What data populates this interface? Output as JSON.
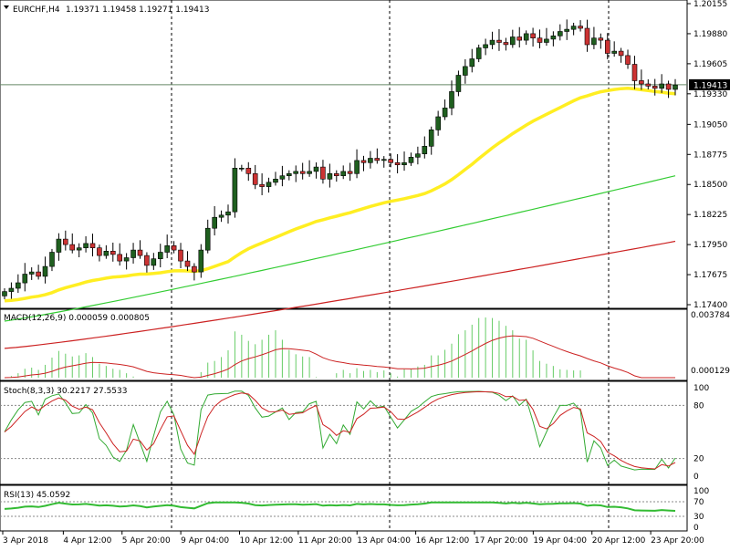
{
  "chart_data": {
    "type": "candlestick",
    "symbol_label": "EURCHF,H4",
    "ohlc_label": "1.19371 1.19458 1.19271 1.19413",
    "current_price_label": "1.19413",
    "price_ticks": [
      "1.20155",
      "1.19880",
      "1.19605",
      "1.19330",
      "1.19050",
      "1.18775",
      "1.18500",
      "1.18225",
      "1.17950",
      "1.17675",
      "1.17400"
    ],
    "price_range": [
      1.174,
      1.20155
    ],
    "current_price": 1.19413,
    "time_ticks": [
      "3 Apr 2018",
      "4 Apr 12:00",
      "5 Apr 20:00",
      "9 Apr 04:00",
      "10 Apr 12:00",
      "11 Apr 20:00",
      "13 Apr 04:00",
      "16 Apr 12:00",
      "17 Apr 20:00",
      "19 Apr 04:00",
      "20 Apr 12:00",
      "23 Apr 20:00"
    ],
    "closes": [
      1.1752,
      1.1755,
      1.176,
      1.1768,
      1.177,
      1.1766,
      1.1775,
      1.1788,
      1.18,
      1.1795,
      1.179,
      1.1792,
      1.1796,
      1.1792,
      1.1785,
      1.1789,
      1.1786,
      1.178,
      1.1783,
      1.179,
      1.1785,
      1.1776,
      1.1782,
      1.1788,
      1.1794,
      1.179,
      1.178,
      1.1775,
      1.177,
      1.179,
      1.181,
      1.182,
      1.1822,
      1.1825,
      1.1865,
      1.1865,
      1.186,
      1.185,
      1.1848,
      1.1852,
      1.1855,
      1.1858,
      1.186,
      1.1862,
      1.186,
      1.1862,
      1.1866,
      1.1855,
      1.186,
      1.1858,
      1.1862,
      1.186,
      1.1872,
      1.187,
      1.1874,
      1.1872,
      1.1873,
      1.187,
      1.1868,
      1.187,
      1.1875,
      1.1878,
      1.1885,
      1.19,
      1.1912,
      1.192,
      1.1935,
      1.195,
      1.1958,
      1.1965,
      1.1975,
      1.1978,
      1.1982,
      1.198,
      1.1978,
      1.1985,
      1.1982,
      1.1988,
      1.1984,
      1.198,
      1.1983,
      1.1986,
      1.199,
      1.1992,
      1.1995,
      1.1993,
      1.1978,
      1.1984,
      1.1982,
      1.197,
      1.1972,
      1.1968,
      1.196,
      1.1945,
      1.1942,
      1.194,
      1.1938,
      1.1942,
      1.1937,
      1.1941
    ],
    "ma_yellow": {
      "start": 1.1743,
      "end": 1.1933
    },
    "ma_green": {
      "start": 1.1725,
      "end": 1.1858
    },
    "ma_red": {
      "start": 1.17,
      "end": 1.1798
    },
    "macd": {
      "label": "MACD(12,26,9) 0.000059 0.000805",
      "ticks": [
        "0.003784",
        "0.000129"
      ],
      "range": [
        0,
        0.003784
      ]
    },
    "stoch": {
      "label": "Stoch(8,3,3) 30.2217 27.5533",
      "ticks": [
        "100",
        "80",
        "20",
        "0"
      ],
      "levels": [
        80,
        20
      ]
    },
    "rsi": {
      "label": "RSI(13) 45.0592",
      "ticks": [
        "100",
        "70",
        "30",
        "0"
      ],
      "levels": [
        70,
        30
      ],
      "value": 45.0592
    },
    "colors": {
      "bull": "#1f5f1f",
      "bear": "#cc3333",
      "ma_yellow": "#ffee22",
      "ma_green": "#33cc33",
      "ma_red": "#cc2222",
      "macd_hist": "#66cc66",
      "signal": "#cc2222",
      "stoch_main": "#33aa33",
      "stoch_signal": "#cc2222",
      "rsi_line": "#33bb33",
      "price_line": "#668866"
    }
  }
}
